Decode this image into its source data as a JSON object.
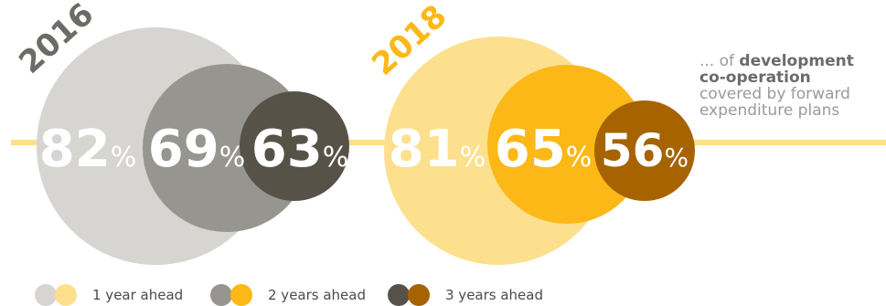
{
  "chart_data": [
    {
      "type": "bubble",
      "year_label": "2016",
      "series": [
        {
          "name": "1 year ahead",
          "value": 82,
          "label": "82",
          "unit": "%"
        },
        {
          "name": "2 years ahead",
          "value": 69,
          "label": "69",
          "unit": "%"
        },
        {
          "name": "3 years ahead",
          "value": 63,
          "label": "63",
          "unit": "%"
        }
      ]
    },
    {
      "type": "bubble",
      "year_label": "2018",
      "series": [
        {
          "name": "1 year ahead",
          "value": 81,
          "label": "81",
          "unit": "%"
        },
        {
          "name": "2 years ahead",
          "value": 65,
          "label": "65",
          "unit": "%"
        },
        {
          "name": "3 years ahead",
          "value": 56,
          "label": "56",
          "unit": "%"
        }
      ]
    }
  ],
  "description": {
    "prefix": "... of ",
    "bold": "development co-operation",
    "suffix": "covered by forward expenditure  plans"
  },
  "legend": [
    {
      "label": "1 year ahead",
      "colors": [
        "#d6d5d2",
        "#fde08e"
      ]
    },
    {
      "label": "2 years ahead",
      "colors": [
        "#97958f",
        "#fbb817"
      ]
    },
    {
      "label": "3 years ahead",
      "colors": [
        "#575248",
        "#a66300"
      ]
    }
  ],
  "colors": {
    "line": "#fde08e",
    "year_2016_label": "#6d6b66",
    "year_2018_label": "#fbb817",
    "gray_1": "#d6d5d2",
    "gray_2": "#97958f",
    "gray_3": "#575248",
    "gold_1": "#fde08e",
    "gold_2": "#fbb817",
    "gold_3": "#a66300",
    "value_text": "#ffffff"
  }
}
